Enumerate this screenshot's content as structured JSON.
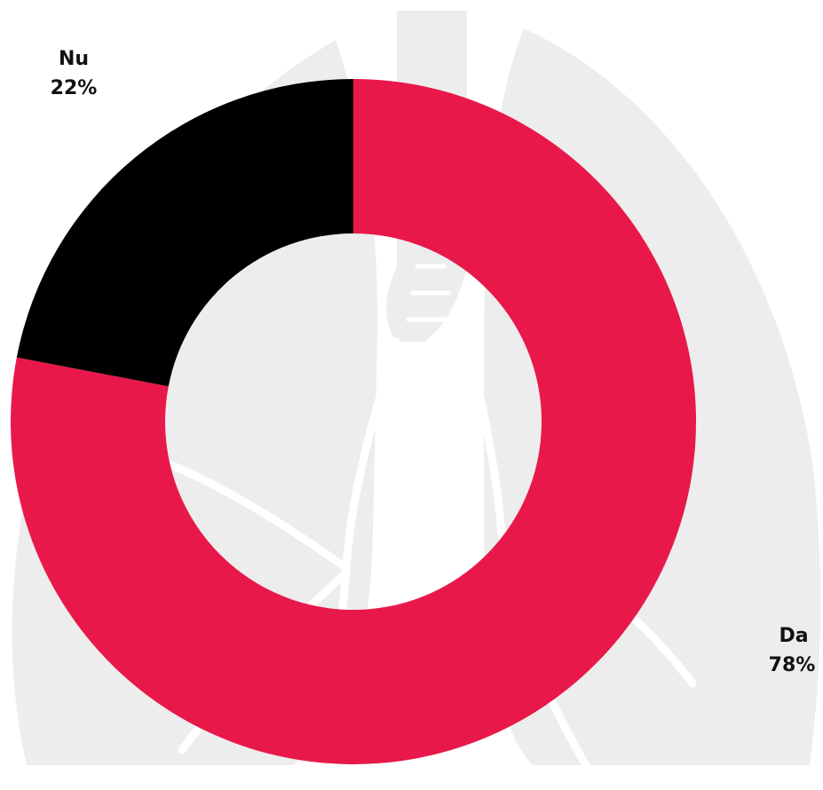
{
  "chart_data": {
    "type": "pie",
    "variant": "donut",
    "categories": [
      "Da",
      "Nu"
    ],
    "values": [
      78,
      22
    ],
    "value_labels": [
      "78%",
      "22%"
    ],
    "colors": [
      "#E8194A",
      "#000000"
    ],
    "background_illustration": "lungs-icon",
    "illustration_color": "#EDEDED"
  }
}
